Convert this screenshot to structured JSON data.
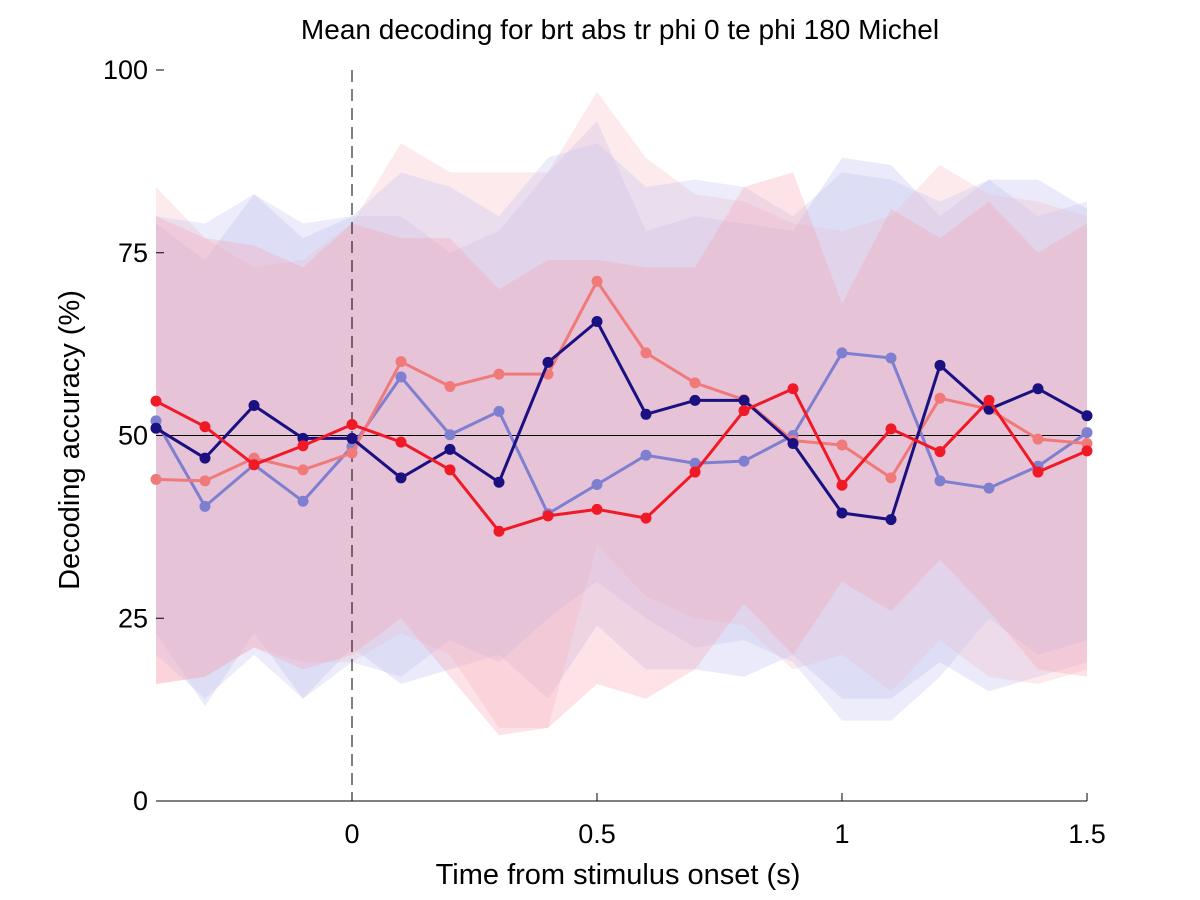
{
  "chart_data": {
    "type": "line",
    "title": "Mean decoding for brt abs tr phi 0 te phi 180  Michel",
    "xlabel": "Time from stimulus onset (s)",
    "ylabel": "Decoding accuracy (%)",
    "xlim": [
      -0.4,
      1.5
    ],
    "ylim": [
      0,
      100
    ],
    "xticks": [
      0,
      0.5,
      1,
      1.5
    ],
    "xtick_labels": [
      "0",
      "0.5",
      "1",
      "1.5"
    ],
    "yticks": [
      0,
      25,
      50,
      75,
      100
    ],
    "ytick_labels": [
      "0",
      "25",
      "50",
      "75",
      "100"
    ],
    "reference_line_y": 50,
    "stimulus_onset_x": 0,
    "grid": false,
    "legend": "none",
    "x": [
      -0.4,
      -0.3,
      -0.2,
      -0.1,
      0,
      0.1,
      0.2,
      0.3,
      0.4,
      0.5,
      0.6,
      0.7,
      0.8,
      0.9,
      1.0,
      1.1,
      1.2,
      1.3,
      1.4,
      1.5
    ],
    "series": [
      {
        "color": "#7f7fd0",
        "values": [
          52,
          40.3,
          46,
          41,
          48.5,
          58,
          50.1,
          53.3,
          39.3,
          43.3,
          47.3,
          46.2,
          46.5,
          50,
          61.3,
          60.6,
          43.8,
          42.8,
          45.8,
          50.4
        ],
        "band_lower": [
          23,
          13,
          23,
          14,
          21,
          16,
          18,
          20,
          14,
          24,
          18,
          18,
          17,
          20,
          14,
          14,
          19,
          15,
          17,
          19
        ],
        "band_upper": [
          79,
          74,
          83,
          77,
          80,
          80,
          75,
          78,
          86,
          93,
          78,
          80,
          79,
          78,
          88,
          87,
          80,
          85,
          85,
          81
        ],
        "band_color": "#b8b8ee"
      },
      {
        "color": "#f07a7a",
        "values": [
          44,
          43.8,
          46.9,
          45.3,
          47.6,
          60.1,
          56.7,
          58.4,
          58.4,
          71.1,
          61.3,
          57.2,
          54.9,
          49.3,
          48.7,
          44.2,
          55.1,
          53.6,
          49.5,
          48.9
        ],
        "band_lower": [
          16,
          17,
          21,
          19,
          19,
          23,
          20,
          10,
          10,
          35,
          28,
          25,
          24,
          18,
          20,
          15,
          22,
          17,
          16,
          18
        ],
        "band_upper": [
          84,
          77,
          73,
          74,
          79,
          90,
          86,
          86,
          86,
          97,
          88,
          83,
          82,
          79,
          78,
          80,
          87,
          83,
          82,
          80
        ],
        "band_color": "#f7b8c4"
      },
      {
        "color": "#1a1080",
        "values": [
          51,
          46.9,
          54.1,
          49.6,
          49.6,
          44.2,
          48.1,
          43.6,
          60,
          65.6,
          52.9,
          54.8,
          54.8,
          48.9,
          39.4,
          38.5,
          59.6,
          53.6,
          56.4,
          52.7
        ],
        "band_lower": [
          20,
          14,
          20,
          14,
          19,
          17,
          22,
          19,
          25,
          30,
          25,
          21,
          22,
          19,
          11,
          11,
          17,
          25,
          20,
          22
        ],
        "band_upper": [
          80,
          79,
          83,
          79,
          80,
          86,
          84,
          80,
          88,
          90,
          84,
          85,
          84,
          80,
          86,
          85,
          82,
          85,
          80,
          82
        ],
        "band_color": "#c0c0f0"
      },
      {
        "color": "#f01a26",
        "values": [
          54.7,
          51.2,
          46,
          48.6,
          51.5,
          49.1,
          45.3,
          36.9,
          39,
          39.9,
          38.7,
          45,
          53.4,
          56.4,
          43.2,
          50.9,
          47.8,
          54.8,
          45,
          47.9
        ],
        "band_lower": [
          16,
          17,
          21,
          18,
          20,
          25,
          17,
          9,
          10,
          16,
          14,
          18,
          27,
          20,
          30,
          26,
          33,
          26,
          18,
          17
        ],
        "band_upper": [
          80,
          77,
          76,
          73,
          79,
          77,
          77,
          70,
          74,
          74,
          73,
          73,
          84,
          86,
          68,
          81,
          77,
          82,
          75,
          79
        ],
        "band_color": "#f7a0b0"
      }
    ]
  }
}
